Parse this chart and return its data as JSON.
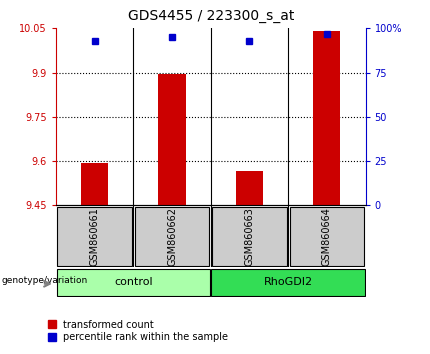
{
  "title": "GDS4455 / 223300_s_at",
  "samples": [
    "GSM860661",
    "GSM860662",
    "GSM860663",
    "GSM860664"
  ],
  "groups": [
    "control",
    "control",
    "RhoGDI2",
    "RhoGDI2"
  ],
  "group_labels": [
    "control",
    "RhoGDI2"
  ],
  "transformed_counts": [
    9.595,
    9.895,
    9.565,
    10.04
  ],
  "percentile_ranks": [
    93,
    95,
    93,
    97
  ],
  "ymin": 9.45,
  "ymax": 10.05,
  "yticks": [
    9.45,
    9.6,
    9.75,
    9.9,
    10.05
  ],
  "ytick_labels": [
    "9.45",
    "9.6",
    "9.75",
    "9.9",
    "10.05"
  ],
  "right_yticks": [
    0,
    25,
    50,
    75,
    100
  ],
  "right_ytick_labels": [
    "0",
    "25",
    "50",
    "75",
    "100%"
  ],
  "bar_color": "#CC0000",
  "dot_color": "#0000CC",
  "control_bg": "#CCFFCC",
  "rhodgi2_bg": "#00CC44",
  "group_header_bg": "#CCFFCC",
  "sample_box_bg": "#CCCCCC",
  "grid_color": "#000000",
  "left_axis_color": "#CC0000",
  "right_axis_color": "#0000CC"
}
